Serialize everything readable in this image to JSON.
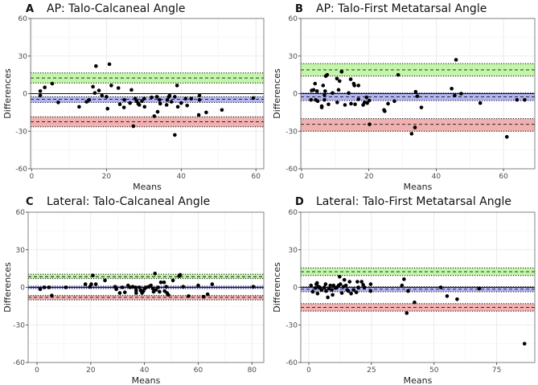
{
  "chart_data": [
    {
      "type": "scatter",
      "panel_label": "A",
      "title": "AP: Talo-Calcaneal Angle",
      "xlabel": "Means",
      "ylabel": "Differences",
      "xlim": [
        -0.3,
        62.1
      ],
      "ylim": [
        -60,
        60
      ],
      "xticks": [
        0,
        20,
        40,
        60
      ],
      "yticks": [
        -60,
        -30,
        0,
        30,
        60
      ],
      "grid": true,
      "bands": {
        "upper": {
          "loa": 12.5,
          "ci": [
            8.5,
            16.5
          ]
        },
        "bias": {
          "loa": -4.5,
          "ci": [
            -7,
            -2.5
          ]
        },
        "lower": {
          "loa": -22.5,
          "ci": [
            -26.5,
            -18.5
          ]
        }
      },
      "points": [
        [
          2.3,
          2
        ],
        [
          2.3,
          -1.5
        ],
        [
          3.5,
          5
        ],
        [
          5.5,
          8
        ],
        [
          7.1,
          -7
        ],
        [
          12.7,
          -10.5
        ],
        [
          14.7,
          -6.5
        ],
        [
          15.4,
          -5
        ],
        [
          16.4,
          5.5
        ],
        [
          16.9,
          0.5
        ],
        [
          17.2,
          22
        ],
        [
          18,
          2.5
        ],
        [
          18.8,
          -1.5
        ],
        [
          20,
          -2.5
        ],
        [
          20.3,
          -12
        ],
        [
          20.8,
          23.5
        ],
        [
          21.3,
          6.5
        ],
        [
          23.2,
          4.5
        ],
        [
          23.6,
          -8.5
        ],
        [
          24.7,
          -11
        ],
        [
          24.8,
          -5
        ],
        [
          26.3,
          -7.5
        ],
        [
          26.7,
          3
        ],
        [
          27.2,
          -26
        ],
        [
          27.7,
          -4
        ],
        [
          28.1,
          -6
        ],
        [
          28.5,
          -8
        ],
        [
          28.8,
          -9
        ],
        [
          29.5,
          -6
        ],
        [
          30.1,
          -4
        ],
        [
          30.2,
          -10.5
        ],
        [
          32.1,
          -3
        ],
        [
          32.8,
          -18
        ],
        [
          33.5,
          -2.5
        ],
        [
          33.7,
          -14.5
        ],
        [
          34.2,
          -5
        ],
        [
          34.4,
          -8
        ],
        [
          36.1,
          -9
        ],
        [
          36.3,
          -5
        ],
        [
          36.7,
          -2.5
        ],
        [
          36.9,
          -1.5
        ],
        [
          37.4,
          -6.5
        ],
        [
          38.3,
          -2.5
        ],
        [
          38.3,
          -33
        ],
        [
          38.9,
          6.5
        ],
        [
          39.1,
          -10.5
        ],
        [
          40,
          -7.5
        ],
        [
          41.2,
          -4
        ],
        [
          41.6,
          -9.5
        ],
        [
          42.7,
          -4
        ],
        [
          44.7,
          -17
        ],
        [
          44.9,
          -1.5
        ],
        [
          44.9,
          -5
        ],
        [
          46.7,
          -15
        ],
        [
          50.9,
          -13
        ],
        [
          59.3,
          -3.5
        ]
      ]
    },
    {
      "type": "scatter",
      "panel_label": "B",
      "title": "AP: Talo-First Metatarsal Angle",
      "xlabel": "Means",
      "ylabel": "Differences",
      "xlim": [
        -0.24,
        69.3
      ],
      "ylim": [
        -60,
        60
      ],
      "xticks": [
        0,
        20,
        40,
        60
      ],
      "yticks": [
        -60,
        -30,
        0,
        30,
        60
      ],
      "grid": true,
      "bands": {
        "upper": {
          "loa": 19,
          "ci": [
            14,
            24
          ]
        },
        "bias": {
          "loa": -2.5,
          "ci": [
            -5.5,
            0.5
          ]
        },
        "lower": {
          "loa": -24.5,
          "ci": [
            -30,
            -20
          ]
        }
      },
      "points": [
        [
          2.8,
          -5
        ],
        [
          3,
          2.5
        ],
        [
          3.6,
          3
        ],
        [
          4,
          8
        ],
        [
          4.2,
          -5
        ],
        [
          4.6,
          2
        ],
        [
          4.8,
          -6
        ],
        [
          6,
          -10
        ],
        [
          6,
          -11
        ],
        [
          6.4,
          6.5
        ],
        [
          6.8,
          -1
        ],
        [
          6.8,
          -5
        ],
        [
          7,
          2
        ],
        [
          7.2,
          14
        ],
        [
          7.6,
          15
        ],
        [
          8,
          -8.5
        ],
        [
          9.2,
          0.5
        ],
        [
          10.5,
          12
        ],
        [
          10.6,
          -7
        ],
        [
          11,
          3
        ],
        [
          11.3,
          10
        ],
        [
          11.9,
          17.5
        ],
        [
          12.9,
          -9
        ],
        [
          14,
          0.5
        ],
        [
          14.6,
          11.5
        ],
        [
          14.7,
          -8
        ],
        [
          15.5,
          8
        ],
        [
          15.7,
          6.5
        ],
        [
          15.9,
          -8.5
        ],
        [
          16.9,
          6.5
        ],
        [
          16.9,
          -4.5
        ],
        [
          18.3,
          -9
        ],
        [
          18.7,
          -7
        ],
        [
          19.3,
          -3
        ],
        [
          19.5,
          -7.5
        ],
        [
          20.1,
          -5.5
        ],
        [
          20.2,
          -24.5
        ],
        [
          24.5,
          -13
        ],
        [
          24.7,
          -14
        ],
        [
          25.7,
          -8
        ],
        [
          27.6,
          -6
        ],
        [
          28.7,
          15
        ],
        [
          32.7,
          -32
        ],
        [
          33.7,
          -27
        ],
        [
          33.9,
          1.5
        ],
        [
          34.4,
          -2
        ],
        [
          35.6,
          -11
        ],
        [
          44.6,
          4
        ],
        [
          45.5,
          -1.5
        ],
        [
          45.9,
          27
        ],
        [
          47.4,
          0
        ],
        [
          53.1,
          -7.5
        ],
        [
          61,
          -34.5
        ],
        [
          64,
          -5
        ],
        [
          66.3,
          -5
        ]
      ]
    },
    {
      "type": "scatter",
      "panel_label": "C",
      "title": "Lateral: Talo-Calcaneal Angle",
      "xlabel": "Means",
      "ylabel": "Differences",
      "xlim": [
        -3.3,
        84.4
      ],
      "ylim": [
        -60,
        60
      ],
      "xticks": [
        0,
        20,
        40,
        60,
        80
      ],
      "yticks": [
        -60,
        -30,
        0,
        30,
        60
      ],
      "grid": true,
      "bands": {
        "upper": {
          "loa": 8.5,
          "ci": [
            7,
            10.5
          ]
        },
        "bias": {
          "loa": 0,
          "ci": [
            -1,
            1
          ]
        },
        "lower": {
          "loa": -8,
          "ci": [
            -10,
            -6.5
          ]
        }
      },
      "points": [
        [
          1.2,
          -1.5
        ],
        [
          2.7,
          0
        ],
        [
          4.4,
          0
        ],
        [
          5.5,
          -6.5
        ],
        [
          10.7,
          0
        ],
        [
          18,
          2.5
        ],
        [
          19.7,
          0.5
        ],
        [
          20.2,
          2.5
        ],
        [
          20.8,
          9.5
        ],
        [
          21.9,
          2.5
        ],
        [
          25.3,
          5.5
        ],
        [
          29.1,
          0.5
        ],
        [
          29.5,
          -1.5
        ],
        [
          30.8,
          -4.5
        ],
        [
          31.8,
          0
        ],
        [
          32.7,
          -4
        ],
        [
          33.9,
          1.5
        ],
        [
          34.6,
          0
        ],
        [
          35.6,
          0.5
        ],
        [
          36.6,
          0
        ],
        [
          36.9,
          -2.5
        ],
        [
          36.9,
          -4.5
        ],
        [
          38.1,
          0
        ],
        [
          38.6,
          -2.5
        ],
        [
          39.1,
          -4.5
        ],
        [
          39.6,
          -3
        ],
        [
          40.1,
          -1
        ],
        [
          40.6,
          0
        ],
        [
          41.6,
          0.5
        ],
        [
          42.4,
          1.5
        ],
        [
          43.1,
          -1
        ],
        [
          43.4,
          -3.5
        ],
        [
          43.9,
          11
        ],
        [
          44.3,
          -2
        ],
        [
          45.1,
          0
        ],
        [
          45.6,
          -3.5
        ],
        [
          46.1,
          4
        ],
        [
          47.3,
          4
        ],
        [
          47.5,
          -3
        ],
        [
          48.1,
          0.5
        ],
        [
          48.4,
          -4.5
        ],
        [
          48.9,
          -6
        ],
        [
          50.6,
          5.5
        ],
        [
          52.9,
          9
        ],
        [
          53.3,
          10
        ],
        [
          54.4,
          0.5
        ],
        [
          56.4,
          -7
        ],
        [
          60,
          1.5
        ],
        [
          62,
          -7.5
        ],
        [
          63.5,
          -5.5
        ],
        [
          65.2,
          2.5
        ],
        [
          80.5,
          0.5
        ]
      ]
    },
    {
      "type": "scatter",
      "panel_label": "D",
      "title": "Lateral: Talo-First Metatarsal Angle",
      "xlabel": "Means",
      "ylabel": "Differences",
      "xlim": [
        -3.2,
        90.2
      ],
      "ylim": [
        -60,
        60
      ],
      "xticks": [
        0,
        25,
        50,
        75
      ],
      "yticks": [
        -60,
        -30,
        0,
        30,
        60
      ],
      "grid": true,
      "bands": {
        "upper": {
          "loa": 12.5,
          "ci": [
            9.5,
            15.5
          ]
        },
        "bias": {
          "loa": -1.5,
          "ci": [
            -3.5,
            0.5
          ]
        },
        "lower": {
          "loa": -16,
          "ci": [
            -19,
            -13
          ]
        }
      },
      "points": [
        [
          0.9,
          1.5
        ],
        [
          1.6,
          -3.5
        ],
        [
          2.7,
          -0.5
        ],
        [
          3,
          2.5
        ],
        [
          3.3,
          3.5
        ],
        [
          3.5,
          -5
        ],
        [
          3.9,
          0.5
        ],
        [
          4.4,
          0
        ],
        [
          5.1,
          -2
        ],
        [
          6.2,
          0
        ],
        [
          6.7,
          2.5
        ],
        [
          6.9,
          -3
        ],
        [
          7.6,
          -8
        ],
        [
          8,
          -1
        ],
        [
          8.6,
          1.5
        ],
        [
          9.2,
          -2
        ],
        [
          9.5,
          -6
        ],
        [
          9.9,
          1.5
        ],
        [
          10.6,
          -0.5
        ],
        [
          11.2,
          0
        ],
        [
          11.9,
          1.5
        ],
        [
          12.3,
          8.5
        ],
        [
          12.6,
          2.5
        ],
        [
          13.2,
          -4.5
        ],
        [
          13.8,
          0.5
        ],
        [
          14.2,
          6
        ],
        [
          14.8,
          1.5
        ],
        [
          15.3,
          -2
        ],
        [
          15.8,
          -3
        ],
        [
          16.3,
          4.5
        ],
        [
          16.9,
          -5
        ],
        [
          17.9,
          -2
        ],
        [
          19,
          -4
        ],
        [
          19.4,
          4.5
        ],
        [
          19.8,
          0
        ],
        [
          21.1,
          4.5
        ],
        [
          21.7,
          2
        ],
        [
          22.2,
          0
        ],
        [
          24.7,
          2.5
        ],
        [
          24.7,
          -3
        ],
        [
          37.2,
          1.5
        ],
        [
          38,
          6.5
        ],
        [
          39.1,
          -20.5
        ],
        [
          39.6,
          -3
        ],
        [
          42.2,
          -12
        ],
        [
          52.7,
          0
        ],
        [
          55.2,
          -7
        ],
        [
          59.2,
          -9.5
        ],
        [
          68,
          -1
        ],
        [
          86.1,
          -45
        ]
      ]
    }
  ],
  "colors": {
    "upper_band": "#b8f59a",
    "bias_band": "#a6a8f2",
    "lower_band": "#eda3a3",
    "points": "#000000"
  }
}
